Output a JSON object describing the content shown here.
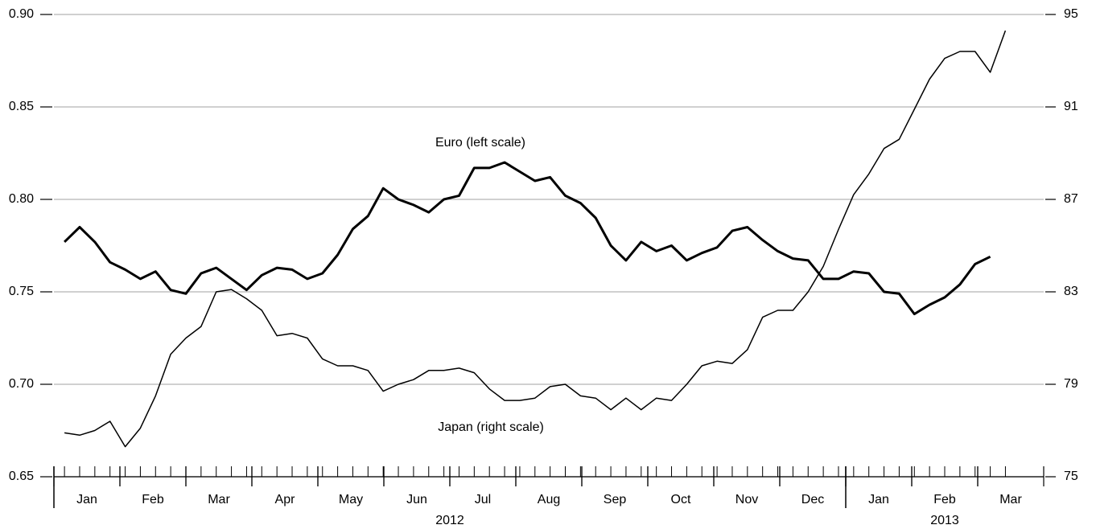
{
  "chart_data": {
    "type": "line",
    "annotations": [
      "Euro (left scale)",
      "Japan (right scale)"
    ],
    "x": [
      0.16,
      0.39,
      0.62,
      0.85,
      1.08,
      1.31,
      1.54,
      1.77,
      2.0,
      2.23,
      2.46,
      2.69,
      2.92,
      3.15,
      3.38,
      3.61,
      3.84,
      4.07,
      4.3,
      4.53,
      4.76,
      4.99,
      5.22,
      5.45,
      5.68,
      5.91,
      6.14,
      6.37,
      6.6,
      6.83,
      7.06,
      7.29,
      7.52,
      7.75,
      7.98,
      8.21,
      8.44,
      8.67,
      8.9,
      9.13,
      9.36,
      9.59,
      9.82,
      10.05,
      10.28,
      10.51,
      10.74,
      10.97,
      11.2,
      11.43,
      11.66,
      11.89,
      12.12,
      12.35,
      12.58,
      12.81,
      13.04,
      13.27,
      13.5,
      13.73,
      13.96,
      14.19,
      14.42
    ],
    "xlim": [
      0,
      15
    ],
    "xticks": [
      {
        "value": 0.5,
        "label": "Jan"
      },
      {
        "value": 1.5,
        "label": "Feb"
      },
      {
        "value": 2.5,
        "label": "Mar"
      },
      {
        "value": 3.5,
        "label": "Apr"
      },
      {
        "value": 4.5,
        "label": "May"
      },
      {
        "value": 5.5,
        "label": "Jun"
      },
      {
        "value": 6.5,
        "label": "Jul"
      },
      {
        "value": 7.5,
        "label": "Aug"
      },
      {
        "value": 8.5,
        "label": "Sep"
      },
      {
        "value": 9.5,
        "label": "Oct"
      },
      {
        "value": 10.5,
        "label": "Nov"
      },
      {
        "value": 11.5,
        "label": "Dec"
      },
      {
        "value": 12.5,
        "label": "Jan"
      },
      {
        "value": 13.5,
        "label": "Feb"
      },
      {
        "value": 14.5,
        "label": "Mar"
      }
    ],
    "x_groups": [
      {
        "label": "2012",
        "range": [
          0,
          12
        ]
      },
      {
        "label": "2013",
        "range": [
          12,
          15
        ]
      }
    ],
    "ylim": [
      0.65,
      0.9
    ],
    "yticks": [
      {
        "value": 0.65,
        "label": "0.65"
      },
      {
        "value": 0.7,
        "label": "0.70"
      },
      {
        "value": 0.75,
        "label": "0.75"
      },
      {
        "value": 0.8,
        "label": "0.80"
      },
      {
        "value": 0.85,
        "label": "0.85"
      },
      {
        "value": 0.9,
        "label": "0.90"
      }
    ],
    "y2lim": [
      75,
      95
    ],
    "y2ticks": [
      75,
      79,
      83,
      87,
      91,
      95
    ],
    "grid": true,
    "series": [
      {
        "name": "Euro",
        "color": "#000000",
        "width": 3,
        "values": [
          0.777,
          0.785,
          0.777,
          0.766,
          0.762,
          0.757,
          0.761,
          0.751,
          0.749,
          0.76,
          0.763,
          0.757,
          0.751,
          0.759,
          0.763,
          0.762,
          0.757,
          0.76,
          0.77,
          0.784,
          0.791,
          0.806,
          0.8,
          0.797,
          0.793,
          0.8,
          0.802,
          0.817,
          0.817,
          0.82,
          0.815,
          0.81,
          0.812,
          0.802,
          0.798,
          0.79,
          0.775,
          0.767,
          0.777,
          0.772,
          0.775,
          0.767,
          0.771,
          0.774,
          0.783,
          0.785,
          0.778,
          0.772,
          0.768,
          0.767,
          0.757,
          0.757,
          0.761,
          0.76,
          0.75,
          0.749,
          0.738,
          0.743,
          0.747,
          0.754,
          0.765,
          0.769,
          null
        ]
      },
      {
        "name": "Japan",
        "color": "#000000",
        "width": 1.5,
        "axis": "y2",
        "values": [
          76.9,
          76.8,
          77.0,
          77.4,
          76.3,
          77.1,
          78.5,
          80.3,
          81.0,
          81.5,
          83.0,
          83.1,
          82.7,
          82.2,
          81.1,
          81.2,
          81.0,
          80.1,
          79.8,
          79.8,
          79.6,
          78.7,
          79.0,
          79.2,
          79.6,
          79.6,
          79.7,
          79.5,
          78.8,
          78.3,
          78.3,
          78.4,
          78.9,
          79.0,
          78.5,
          78.4,
          77.9,
          78.4,
          77.9,
          78.4,
          78.3,
          79.0,
          79.8,
          80.0,
          79.9,
          80.5,
          81.9,
          82.2,
          82.2,
          83.0,
          84.1,
          85.7,
          87.2,
          88.1,
          89.2,
          89.6,
          90.9,
          92.2,
          93.1,
          93.4,
          93.4,
          92.5,
          94.3
        ]
      }
    ]
  }
}
